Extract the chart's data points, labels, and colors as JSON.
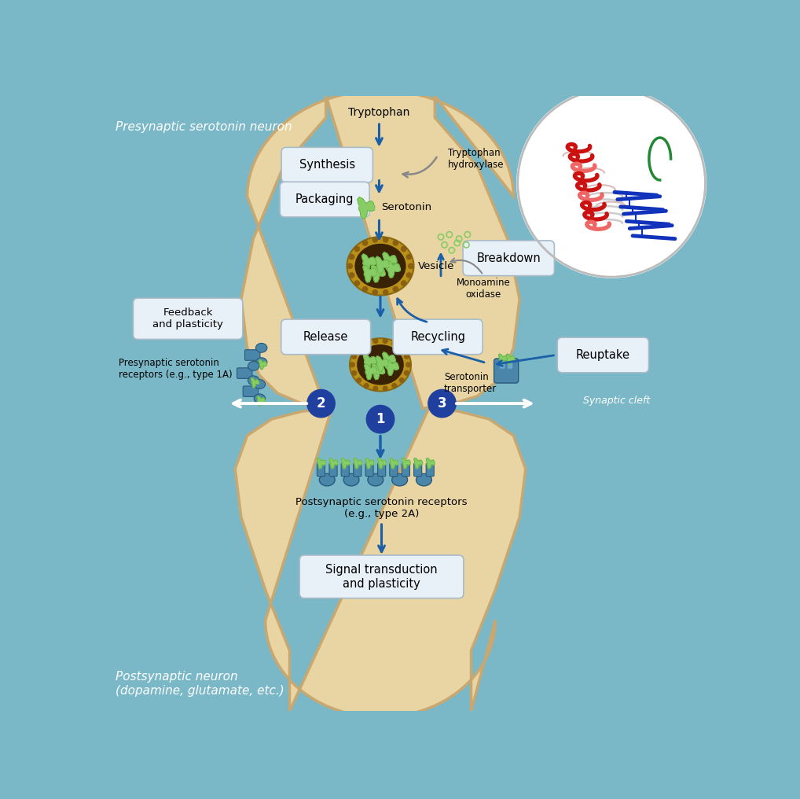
{
  "bg_color": "#7ab8c8",
  "neuron_fill": "#e8d5a3",
  "neuron_edge": "#c8a870",
  "title_presynaptic": "Presynaptic serotonin neuron",
  "title_postsynaptic": "Postsynaptic neuron\n(dopamine, glutamate, etc.)",
  "labels": {
    "tryptophan": "Tryptophan",
    "synthesis": "Synthesis",
    "tryptophan_hydroxylase": "Tryptophan\nhydroxylase",
    "serotonin": "Serotonin",
    "packaging": "Packaging",
    "vesicle": "Vesicle",
    "breakdown": "Breakdown",
    "monoamine_oxidase": "Monoamine\noxidase",
    "release": "Release",
    "recycling": "Recycling",
    "serotonin_transporter": "Serotonin\ntransporter",
    "reuptake": "Reuptake",
    "feedback": "Feedback\nand plasticity",
    "presynaptic_receptors": "Presynaptic serotonin\nreceptors (e.g., type 1A)",
    "synaptic_cleft": "Synaptic cleft",
    "postsynaptic_receptors": "Postsynaptic serotonin receptors\n(e.g., type 2A)",
    "signal_transduction": "Signal transduction\nand plasticity"
  },
  "arrow_color": "#1a5fa8",
  "gray_arrow_color": "#888888",
  "number_circle_color": "#2040a0",
  "serotonin_color": "#88cc66",
  "receptor_color": "#4a85aa"
}
